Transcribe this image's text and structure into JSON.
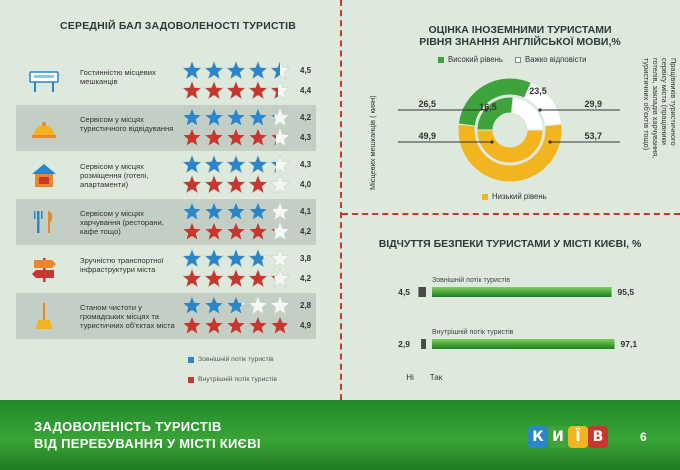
{
  "left": {
    "title": "СЕРЕДНІЙ БАЛ ЗАДОВОЛЕНОСТІ ТУРИСТІВ",
    "rows": [
      {
        "label": "Гостинністю місцевих мешканців",
        "icon": "welcome-sign-icon",
        "ext": "4,5",
        "int": "4,4"
      },
      {
        "label": "Сервісом у місцях туристичного відвідування",
        "icon": "service-bell-icon",
        "ext": "4,2",
        "int": "4,3"
      },
      {
        "label": "Сервісом у місцях розміщення (готелі, апартаменти)",
        "icon": "hotel-icon",
        "ext": "4,3",
        "int": "4,0"
      },
      {
        "label": "Сервісом у місцях харчування (ресторани, кафе тощо)",
        "icon": "fork-knife-icon",
        "ext": "4,1",
        "int": "4,2"
      },
      {
        "label": "Зручністю транспортної інфраструктури міста",
        "icon": "signpost-icon",
        "ext": "3,8",
        "int": "4,2"
      },
      {
        "label": "Станом чистоти у громадських місцях та туристичних об'єктах міста",
        "icon": "broom-icon",
        "ext": "2,8",
        "int": "4,9"
      }
    ],
    "legend_ext": "Зовнішній потік туристів",
    "legend_int": "Внутрішній потік туристів",
    "color_ext": "#2a86c8",
    "color_int": "#c8372d"
  },
  "english": {
    "title_line1": "ОЦІНКА ІНОЗЕМНИМИ ТУРИСТАМИ",
    "title_line2": "РІВНЯ ЗНАННЯ АНГЛІЙСЬКОЇ МОВИ,%",
    "legend_high": "Високий рівень",
    "legend_hard": "Важко відповісти",
    "legend_low": "Низький рівень",
    "left_axis": "Місцевих мешканців ( киян)",
    "right_axis_l1": "Працівників туристичного",
    "right_axis_l2": "сервісу міста (працівники",
    "right_axis_l3": "готелів, закладів харчування,",
    "right_axis_l4": "туристичних об'єктів тощо)",
    "colors": {
      "high": "#3ea33a",
      "hard": "#ffffff",
      "low": "#f2b51f"
    }
  },
  "safety": {
    "title": "ВІДЧУТТЯ БЕЗПЕКИ ТУРИСТАМИ У МІСТІ КИЄВІ, %",
    "no_label": "Ні",
    "yes_label": "Так",
    "color_yes": "#3ea33a",
    "color_no": "#4a4a4a"
  },
  "chart_data": [
    {
      "type": "bar",
      "title": "СЕРЕДНІЙ БАЛ ЗАДОВОЛЕНОСТІ ТУРИСТІВ",
      "categories": [
        "Гостинністю місцевих мешканців",
        "Сервісом у місцях туристичного відвідування",
        "Сервісом у місцях розміщення (готелі, апартаменти)",
        "Сервісом у місцях харчування (ресторани, кафе тощо)",
        "Зручністю транспортної інфраструктури міста",
        "Станом чистоти у громадських місцях та туристичних об'єктах міста"
      ],
      "series": [
        {
          "name": "Зовнішній потік туристів",
          "values": [
            4.5,
            4.2,
            4.3,
            4.1,
            3.8,
            2.8
          ]
        },
        {
          "name": "Внутрішній потік туристів",
          "values": [
            4.4,
            4.3,
            4.0,
            4.2,
            4.2,
            4.9
          ]
        }
      ],
      "ylim": [
        0,
        5
      ],
      "legend": "bottom"
    },
    {
      "type": "pie",
      "title": "ОЦІНКА ІНОЗЕМНИМИ ТУРИСТАМИ РІВНЯ ЗНАННЯ АНГЛІЙСЬКОЇ МОВИ,%",
      "categories": [
        "Високий рівень",
        "Важко відповісти",
        "Низький рівень"
      ],
      "series": [
        {
          "name": "Місцевих мешканців ( киян)",
          "values": [
            26.5,
            23.5,
            49.9
          ]
        },
        {
          "name": "Працівників туристичного сервісу міста (працівники готелів, закладів харчування, туристичних об'єктів тощо)",
          "values": [
            29.9,
            16.5,
            53.7
          ]
        }
      ]
    },
    {
      "type": "bar",
      "title": "ВІДЧУТТЯ БЕЗПЕКИ ТУРИСТАМИ У МІСТІ КИЄВІ, %",
      "categories": [
        "Зовнішній потік туристів",
        "Внутрішній потік туристів"
      ],
      "series": [
        {
          "name": "Ні",
          "values": [
            4.5,
            2.9
          ]
        },
        {
          "name": "Так",
          "values": [
            95.5,
            97.1
          ]
        }
      ],
      "xlim": [
        0,
        100
      ]
    }
  ],
  "footer": {
    "title_line1": "ЗАДОВОЛЕНІСТЬ ТУРИСТІВ",
    "title_line2": "ВІД ПЕРЕБУВАННЯ У МІСТІ КИЄВІ",
    "logo_letters": [
      "К",
      "И",
      "Ї",
      "В"
    ],
    "logo_colors": [
      "#2a86c8",
      "#3ea33a",
      "#f2b51f",
      "#c8372d"
    ],
    "page_number": "6"
  }
}
